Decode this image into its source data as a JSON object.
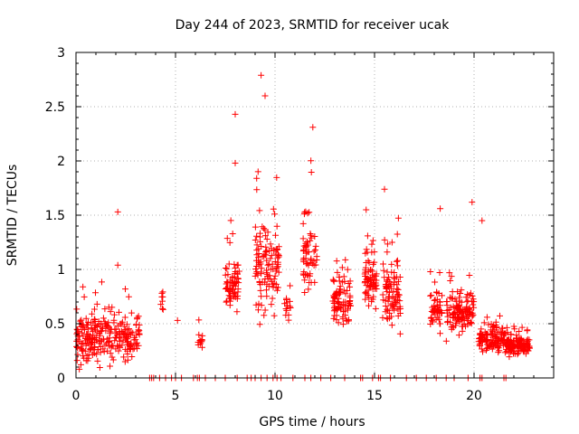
{
  "chart_data": {
    "type": "scatter",
    "title": "Day 244 of 2023, SRMTID for receiver ucak",
    "xlabel": "GPS time / hours",
    "ylabel": "SRMTID / TECUs",
    "xlim": [
      0,
      24
    ],
    "ylim": [
      0,
      3
    ],
    "x_ticks": [
      0,
      5,
      10,
      15,
      20
    ],
    "y_ticks": [
      0,
      0.5,
      1,
      1.5,
      2,
      2.5,
      3
    ],
    "x_tick_labels": [
      "0",
      "5",
      "10",
      "15",
      "20"
    ],
    "y_tick_labels": [
      "0",
      "0.5",
      "1",
      "1.5",
      "2",
      "2.5",
      "3"
    ],
    "grid": true,
    "marker": "+",
    "color": "#ff0000",
    "seed": 244,
    "clusters": [
      {
        "x": [
          0.0,
          3.2
        ],
        "n": 260,
        "base": 0.35,
        "spread": 0.28,
        "min": 0.08,
        "max": 0.9
      },
      {
        "x": [
          4.2,
          4.4
        ],
        "n": 8,
        "base": 0.75,
        "spread": 0.2,
        "min": 0.55,
        "max": 0.95
      },
      {
        "x": [
          6.1,
          6.4
        ],
        "n": 12,
        "base": 0.35,
        "spread": 0.15,
        "min": 0.22,
        "max": 0.58
      },
      {
        "x": [
          7.5,
          8.2
        ],
        "n": 70,
        "base": 0.85,
        "spread": 0.35,
        "min": 0.25,
        "max": 1.8
      },
      {
        "x": [
          9.0,
          10.2
        ],
        "n": 120,
        "base": 1.0,
        "spread": 0.6,
        "min": 0.05,
        "max": 2.8
      },
      {
        "x": [
          10.4,
          10.8
        ],
        "n": 14,
        "base": 0.65,
        "spread": 0.15,
        "min": 0.45,
        "max": 0.85
      },
      {
        "x": [
          11.4,
          12.1
        ],
        "n": 60,
        "base": 1.1,
        "spread": 0.45,
        "min": 0.6,
        "max": 2.3
      },
      {
        "x": [
          12.9,
          13.8
        ],
        "n": 90,
        "base": 0.7,
        "spread": 0.3,
        "min": 0.35,
        "max": 1.3
      },
      {
        "x": [
          14.5,
          15.1
        ],
        "n": 70,
        "base": 0.9,
        "spread": 0.35,
        "min": 0.35,
        "max": 1.55
      },
      {
        "x": [
          15.4,
          16.3
        ],
        "n": 90,
        "base": 0.75,
        "spread": 0.4,
        "min": 0.22,
        "max": 1.75
      },
      {
        "x": [
          17.8,
          18.4
        ],
        "n": 50,
        "base": 0.6,
        "spread": 0.25,
        "min": 0.3,
        "max": 1.55
      },
      {
        "x": [
          18.6,
          20.0
        ],
        "n": 130,
        "base": 0.6,
        "spread": 0.3,
        "min": 0.22,
        "max": 1.6
      },
      {
        "x": [
          20.2,
          21.6
        ],
        "n": 120,
        "base": 0.35,
        "spread": 0.15,
        "min": 0.15,
        "max": 0.85
      },
      {
        "x": [
          21.6,
          22.8
        ],
        "n": 130,
        "base": 0.3,
        "spread": 0.12,
        "min": 0.1,
        "max": 0.75
      }
    ],
    "outliers": [
      {
        "x": 2.1,
        "y": 1.53
      },
      {
        "x": 2.1,
        "y": 1.04
      },
      {
        "x": 5.1,
        "y": 0.53
      },
      {
        "x": 8.0,
        "y": 2.43
      },
      {
        "x": 8.0,
        "y": 1.98
      },
      {
        "x": 9.3,
        "y": 2.79
      },
      {
        "x": 9.5,
        "y": 2.6
      },
      {
        "x": 11.9,
        "y": 2.31
      },
      {
        "x": 15.5,
        "y": 1.74
      },
      {
        "x": 18.3,
        "y": 1.56
      },
      {
        "x": 19.9,
        "y": 1.62
      },
      {
        "x": 20.4,
        "y": 1.45
      }
    ],
    "zero_markers_x": [
      3.7,
      3.8,
      3.9,
      4.2,
      4.5,
      4.8,
      5.0,
      5.3,
      5.9,
      6.1,
      6.2,
      6.5,
      7.0,
      7.5,
      8.1,
      8.6,
      8.8,
      9.0,
      9.3,
      9.6,
      9.9,
      10.1,
      10.3,
      10.9,
      11.5,
      11.8,
      12.3,
      12.8,
      13.5,
      14.3,
      14.4,
      14.9,
      15.2,
      15.3,
      15.8,
      16.6,
      17.1,
      17.6,
      18.1,
      18.6,
      19.0,
      19.7,
      20.3,
      20.4,
      21.5,
      21.6
    ]
  }
}
